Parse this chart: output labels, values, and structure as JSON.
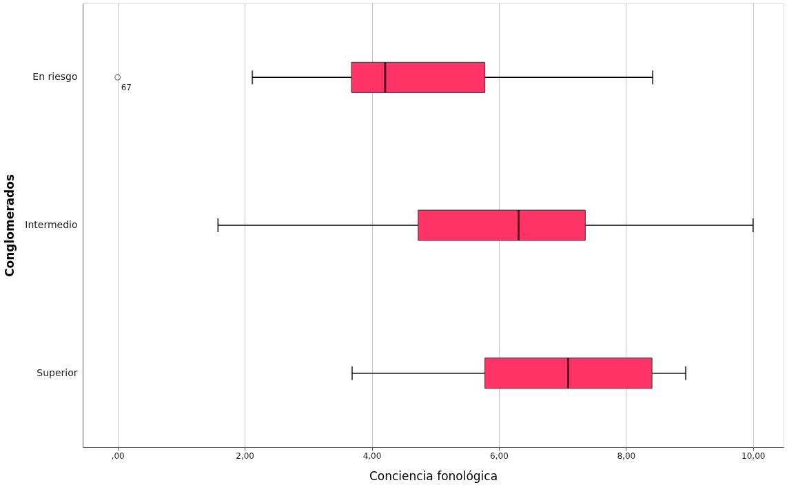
{
  "chart_data": {
    "type": "box",
    "orientation": "horizontal",
    "xlabel": "Conciencia fonológica",
    "ylabel": "Conglomerados",
    "categories": [
      "En riesgo",
      "Intermedio",
      "Superior"
    ],
    "color": "#ff3366",
    "boxes": [
      {
        "low": 2.12,
        "q1": 3.68,
        "median": 4.21,
        "q3": 5.78,
        "high": 8.42,
        "outliers": [
          0
        ]
      },
      {
        "low": 1.58,
        "q1": 4.73,
        "median": 6.31,
        "q3": 7.36,
        "high": 10.0
      },
      {
        "low": 3.69,
        "q1": 5.78,
        "median": 7.09,
        "q3": 8.41,
        "high": 8.94
      }
    ],
    "annotations": [
      "67"
    ],
    "xlim": [
      -0.55,
      10.48
    ],
    "xticks": [
      {
        "value": 0,
        "label": ",00"
      },
      {
        "value": 2,
        "label": "2,00"
      },
      {
        "value": 4,
        "label": "4,00"
      },
      {
        "value": 6,
        "label": "6,00"
      },
      {
        "value": 8,
        "label": "8,00"
      },
      {
        "value": 10,
        "label": "10,00"
      }
    ],
    "grid": "x"
  }
}
